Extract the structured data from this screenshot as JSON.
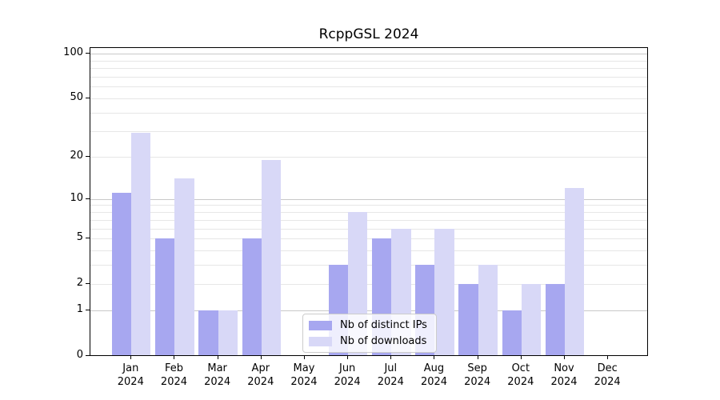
{
  "title": "RcppGSL 2024",
  "colors": {
    "bar_distinct_ips": "#a7a7f0",
    "bar_downloads": "#d8d8f7",
    "grid_major": "#c9c9c9",
    "grid_minor": "#e7e7e7",
    "axis": "#000000",
    "legend_border": "#cccccc"
  },
  "legend": {
    "items": [
      {
        "label": "Nb of distinct IPs",
        "series": "distinct_ips"
      },
      {
        "label": "Nb of downloads",
        "series": "downloads"
      }
    ]
  },
  "chart_data": {
    "type": "bar",
    "title": "RcppGSL 2024",
    "xlabel": "",
    "ylabel": "",
    "categories": [
      "Jan 2024",
      "Feb 2024",
      "Mar 2024",
      "Apr 2024",
      "May 2024",
      "Jun 2024",
      "Jul 2024",
      "Aug 2024",
      "Sep 2024",
      "Oct 2024",
      "Nov 2024",
      "Dec 2024"
    ],
    "series": [
      {
        "name": "Nb of distinct IPs",
        "color": "#a7a7f0",
        "values": [
          11,
          5,
          1,
          5,
          0,
          3,
          5,
          3,
          2,
          1,
          2,
          0
        ]
      },
      {
        "name": "Nb of downloads",
        "color": "#d8d8f7",
        "values": [
          29,
          14,
          1,
          19,
          0,
          8,
          6,
          6,
          3,
          2,
          12,
          0
        ]
      }
    ],
    "yscale": "log1p",
    "ylim": [
      0,
      110
    ],
    "y_axis_ticks": [
      0,
      1,
      2,
      5,
      10,
      20,
      50,
      100
    ],
    "grid_major_values": [
      1,
      10,
      100
    ],
    "grid_minor_values": [
      2,
      3,
      4,
      5,
      6,
      7,
      8,
      9,
      20,
      30,
      40,
      50,
      60,
      70,
      80,
      90
    ],
    "grid": "on",
    "legend_position": "inside bottom-center"
  }
}
